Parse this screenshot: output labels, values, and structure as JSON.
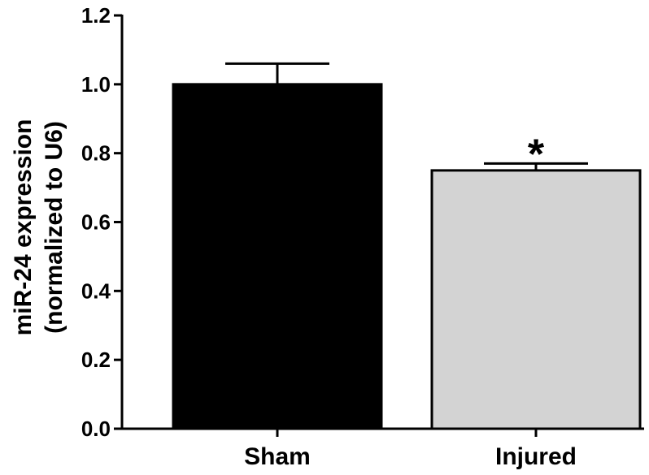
{
  "chart_data": {
    "type": "bar",
    "categories": [
      "Sham",
      "Injured"
    ],
    "values": [
      1.0,
      0.75
    ],
    "errors": [
      0.06,
      0.02
    ],
    "colors": [
      "#000000",
      "#d3d3d3"
    ],
    "annotations": [
      {
        "category": "Injured",
        "text": "*"
      }
    ],
    "title": "",
    "xlabel": "",
    "ylabel_lines": [
      "miR-24 expression",
      "(normalized to U6)"
    ],
    "ylim": [
      0,
      1.2
    ],
    "yticks": [
      "0.0",
      "0.2",
      "0.4",
      "0.6",
      "0.8",
      "1.0",
      "1.2"
    ],
    "grid": false,
    "legend": "none"
  }
}
